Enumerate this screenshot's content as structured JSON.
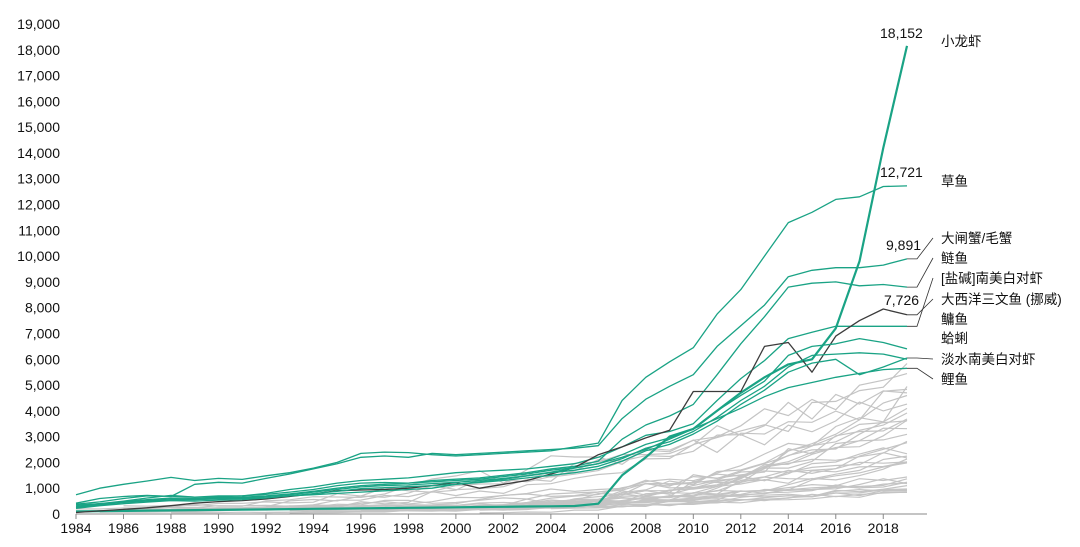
{
  "chart_data": {
    "type": "line",
    "title": "",
    "xlabel": "",
    "ylabel": "",
    "xlim": [
      1984,
      2019
    ],
    "ylim": [
      0,
      19000
    ],
    "x_ticks": [
      1984,
      1986,
      1988,
      1990,
      1992,
      1994,
      1996,
      1998,
      2000,
      2002,
      2004,
      2006,
      2008,
      2010,
      2012,
      2014,
      2016,
      2018
    ],
    "y_ticks": [
      0,
      1000,
      2000,
      3000,
      4000,
      5000,
      6000,
      7000,
      8000,
      9000,
      10000,
      11000,
      12000,
      13000,
      14000,
      15000,
      16000,
      17000,
      18000,
      19000
    ],
    "grid": false,
    "legend": "none",
    "colors": {
      "highlight": "#1aa385",
      "dark": "#3c3c3c",
      "background_series": "#c4c4c4"
    },
    "years": [
      1984,
      1985,
      1986,
      1987,
      1988,
      1989,
      1990,
      1991,
      1992,
      1993,
      1994,
      1995,
      1996,
      1997,
      1998,
      1999,
      2000,
      2001,
      2002,
      2003,
      2004,
      2005,
      2006,
      2007,
      2008,
      2009,
      2010,
      2011,
      2012,
      2013,
      2014,
      2015,
      2016,
      2017,
      2018,
      2019
    ],
    "series": [
      {
        "name": "小龙虾",
        "values": [
          100,
          110,
          120,
          130,
          140,
          150,
          160,
          170,
          180,
          190,
          200,
          210,
          220,
          230,
          240,
          250,
          260,
          270,
          280,
          290,
          300,
          310,
          400,
          1500,
          2200,
          3000,
          3300,
          4000,
          4700,
          5300,
          5800,
          6000,
          7200,
          9800,
          14200,
          18152
        ]
      },
      {
        "name": "草鱼",
        "values": [
          750,
          1000,
          1150,
          1280,
          1420,
          1300,
          1380,
          1340,
          1480,
          1600,
          1780,
          2000,
          2350,
          2400,
          2380,
          2300,
          2250,
          2300,
          2350,
          2400,
          2450,
          2600,
          2750,
          4400,
          5300,
          5900,
          6450,
          7750,
          8700,
          10000,
          11300,
          11700,
          12200,
          12300,
          12700,
          12721
        ]
      },
      {
        "name": "大闸蟹/毛蟹",
        "values": [
          420,
          600,
          680,
          720,
          680,
          1150,
          1230,
          1200,
          1380,
          1550,
          1750,
          1950,
          2200,
          2250,
          2200,
          2350,
          2300,
          2350,
          2400,
          2450,
          2500,
          2550,
          2650,
          3700,
          4450,
          4950,
          5400,
          6500,
          7300,
          8100,
          9200,
          9450,
          9550,
          9550,
          9650,
          9891
        ]
      },
      {
        "name": "鲢鱼",
        "values": [
          300,
          400,
          500,
          620,
          720,
          650,
          700,
          700,
          760,
          850,
          950,
          1100,
          1200,
          1220,
          1200,
          1300,
          1350,
          1400,
          1500,
          1600,
          1750,
          1850,
          2050,
          2900,
          3450,
          3800,
          4250,
          5400,
          6600,
          7650,
          8800,
          8950,
          9000,
          8850,
          8900,
          8800
        ]
      },
      {
        "name": "[盐碱]南美白对虾",
        "values": [
          380,
          470,
          600,
          700,
          690,
          650,
          660,
          700,
          800,
          950,
          1050,
          1200,
          1300,
          1350,
          1400,
          1500,
          1600,
          1650,
          1700,
          1750,
          1850,
          1950,
          2200,
          2600,
          3050,
          3200,
          3500,
          4400,
          5250,
          5950,
          6800,
          7050,
          7280,
          7280,
          7280,
          7280
        ]
      },
      {
        "name": "大西洋三文鱼 (挪威)",
        "values": [
          60,
          120,
          180,
          240,
          320,
          420,
          480,
          520,
          580,
          680,
          780,
          900,
          930,
          950,
          1000,
          1100,
          1220,
          1000,
          1150,
          1300,
          1550,
          1800,
          2300,
          2600,
          2950,
          3250,
          4750,
          4750,
          4750,
          6500,
          6650,
          5500,
          6900,
          7500,
          7950,
          7726
        ]
      },
      {
        "name": "鳙鱼",
        "values": [
          280,
          380,
          480,
          560,
          620,
          600,
          630,
          650,
          700,
          780,
          880,
          1000,
          1100,
          1150,
          1200,
          1250,
          1300,
          1350,
          1450,
          1550,
          1700,
          1800,
          1950,
          2300,
          2700,
          2950,
          3300,
          4000,
          4600,
          5150,
          6150,
          6500,
          6600,
          6800,
          6650,
          6400
        ]
      },
      {
        "name": "蛤蜊",
        "values": [
          250,
          350,
          450,
          520,
          580,
          560,
          600,
          620,
          670,
          750,
          850,
          950,
          1050,
          1100,
          1130,
          1180,
          1230,
          1300,
          1380,
          1480,
          1600,
          1700,
          1850,
          2150,
          2550,
          2800,
          3200,
          3750,
          4400,
          4950,
          5700,
          6150,
          6200,
          6250,
          6200,
          6000
        ]
      },
      {
        "name": "淡水南美白对虾",
        "values": [
          220,
          320,
          400,
          460,
          520,
          500,
          540,
          560,
          620,
          700,
          790,
          880,
          980,
          1020,
          1060,
          1100,
          1150,
          1220,
          1300,
          1400,
          1500,
          1600,
          1750,
          2050,
          2450,
          2700,
          3100,
          3600,
          4250,
          4800,
          5500,
          5850,
          6000,
          5400,
          5700,
          6050
        ]
      },
      {
        "name": "鲤鱼",
        "values": [
          350,
          400,
          450,
          500,
          540,
          560,
          580,
          600,
          620,
          700,
          750,
          800,
          850,
          900,
          950,
          1000,
          1150,
          1250,
          1350,
          1480,
          1620,
          1780,
          1950,
          2200,
          2500,
          2900,
          3300,
          3700,
          4100,
          4550,
          4900,
          5100,
          5300,
          5450,
          5600,
          5650
        ]
      }
    ],
    "labels": {
      "series_names_in_label_order": [
        "小龙虾",
        "草鱼",
        "大闸蟹/毛蟹",
        "鲢鱼",
        "[盐碱]南美白对虾",
        "大西洋三文鱼 (挪威)",
        "鳙鱼",
        "蛤蜊",
        "淡水南美白对虾",
        "鲤鱼"
      ],
      "value_annotations": [
        {
          "series": "小龙虾",
          "text": "18,152"
        },
        {
          "series": "草鱼",
          "text": "12,721"
        },
        {
          "series": "大闸蟹/毛蟹",
          "text": "9,891"
        },
        {
          "series": "大西洋三文鱼 (挪威)",
          "text": "7,726"
        }
      ]
    }
  }
}
